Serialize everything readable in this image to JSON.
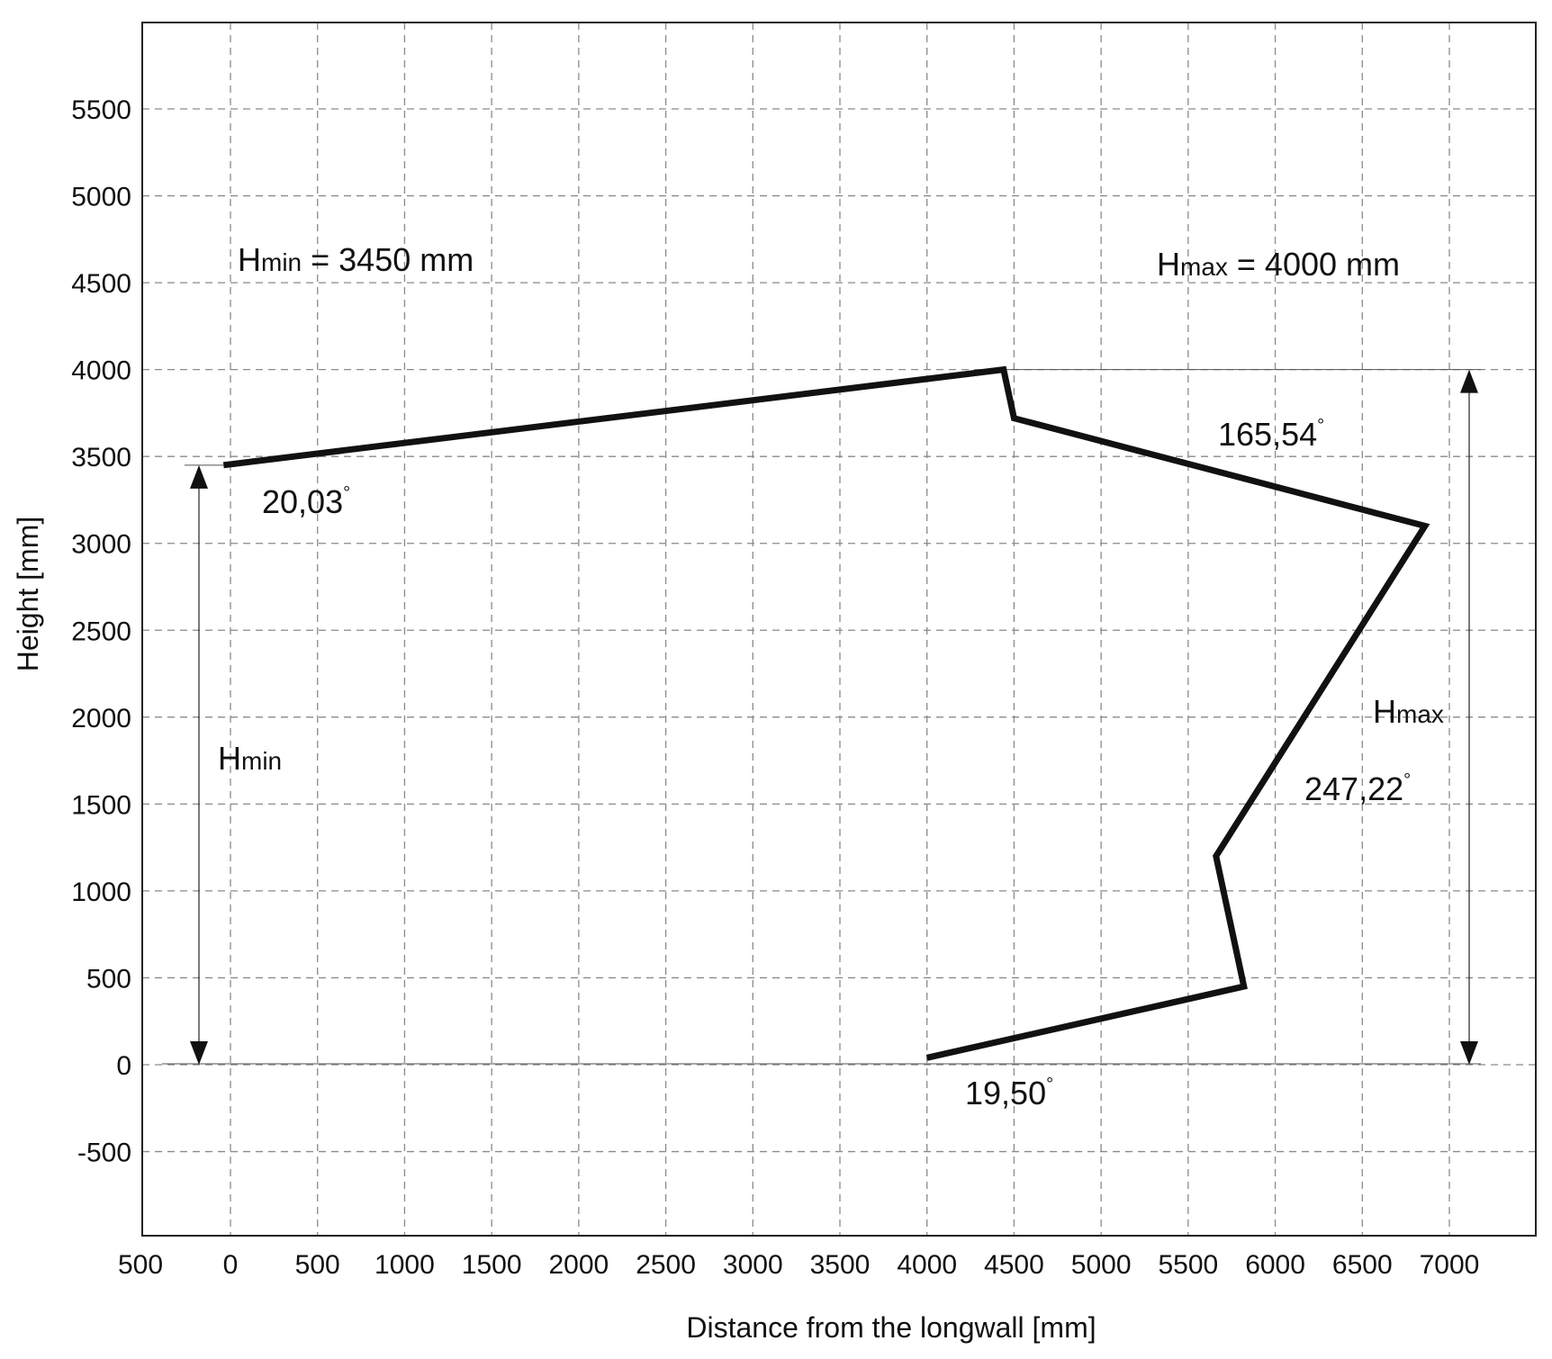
{
  "chart_data": {
    "type": "line",
    "xlabel": "Distance from the longwall [mm]",
    "ylabel": "Height [mm]",
    "x_ticks": [
      "500",
      "0",
      "500",
      "1000",
      "1500",
      "2000",
      "2500",
      "3000",
      "3500",
      "4000",
      "4500",
      "5000",
      "5500",
      "6000",
      "6500",
      "7000"
    ],
    "x_tick_values": [
      -500,
      0,
      500,
      1000,
      1500,
      2000,
      2500,
      3000,
      3500,
      4000,
      4500,
      5000,
      5500,
      6000,
      6500,
      7000
    ],
    "y_ticks": [
      "5500",
      "5000",
      "4500",
      "4000",
      "3500",
      "3000",
      "2500",
      "2000",
      "1500",
      "1000",
      "500",
      "0",
      "-500"
    ],
    "y_tick_values": [
      5500,
      5000,
      4500,
      4000,
      3500,
      3000,
      2500,
      2000,
      1500,
      1000,
      500,
      0,
      -500
    ],
    "xlim": [
      -525,
      7250
    ],
    "ylim": [
      -1000,
      6000
    ],
    "grid": true,
    "series": [
      {
        "x": [
          -40,
          4440,
          4500,
          6860,
          5660,
          5820,
          4000
        ],
        "y": [
          3450,
          4000,
          3720,
          3100,
          1200,
          450,
          40
        ]
      }
    ],
    "annotations": {
      "hmin_title": {
        "main": "H",
        "sub": "min",
        "rest": " = 3450 mm"
      },
      "hmax_title": {
        "main": "H",
        "sub": "max",
        "rest": " = 4000 mm"
      },
      "hmin_label": {
        "main": "H",
        "sub": "min"
      },
      "hmax_label": {
        "main": "H",
        "sub": "max"
      },
      "angles": [
        {
          "value": "20,03",
          "deg": "°"
        },
        {
          "value": "165,54",
          "deg": "°"
        },
        {
          "value": "247,22",
          "deg": "°"
        },
        {
          "value": "19,50",
          "deg": "°"
        }
      ]
    }
  }
}
